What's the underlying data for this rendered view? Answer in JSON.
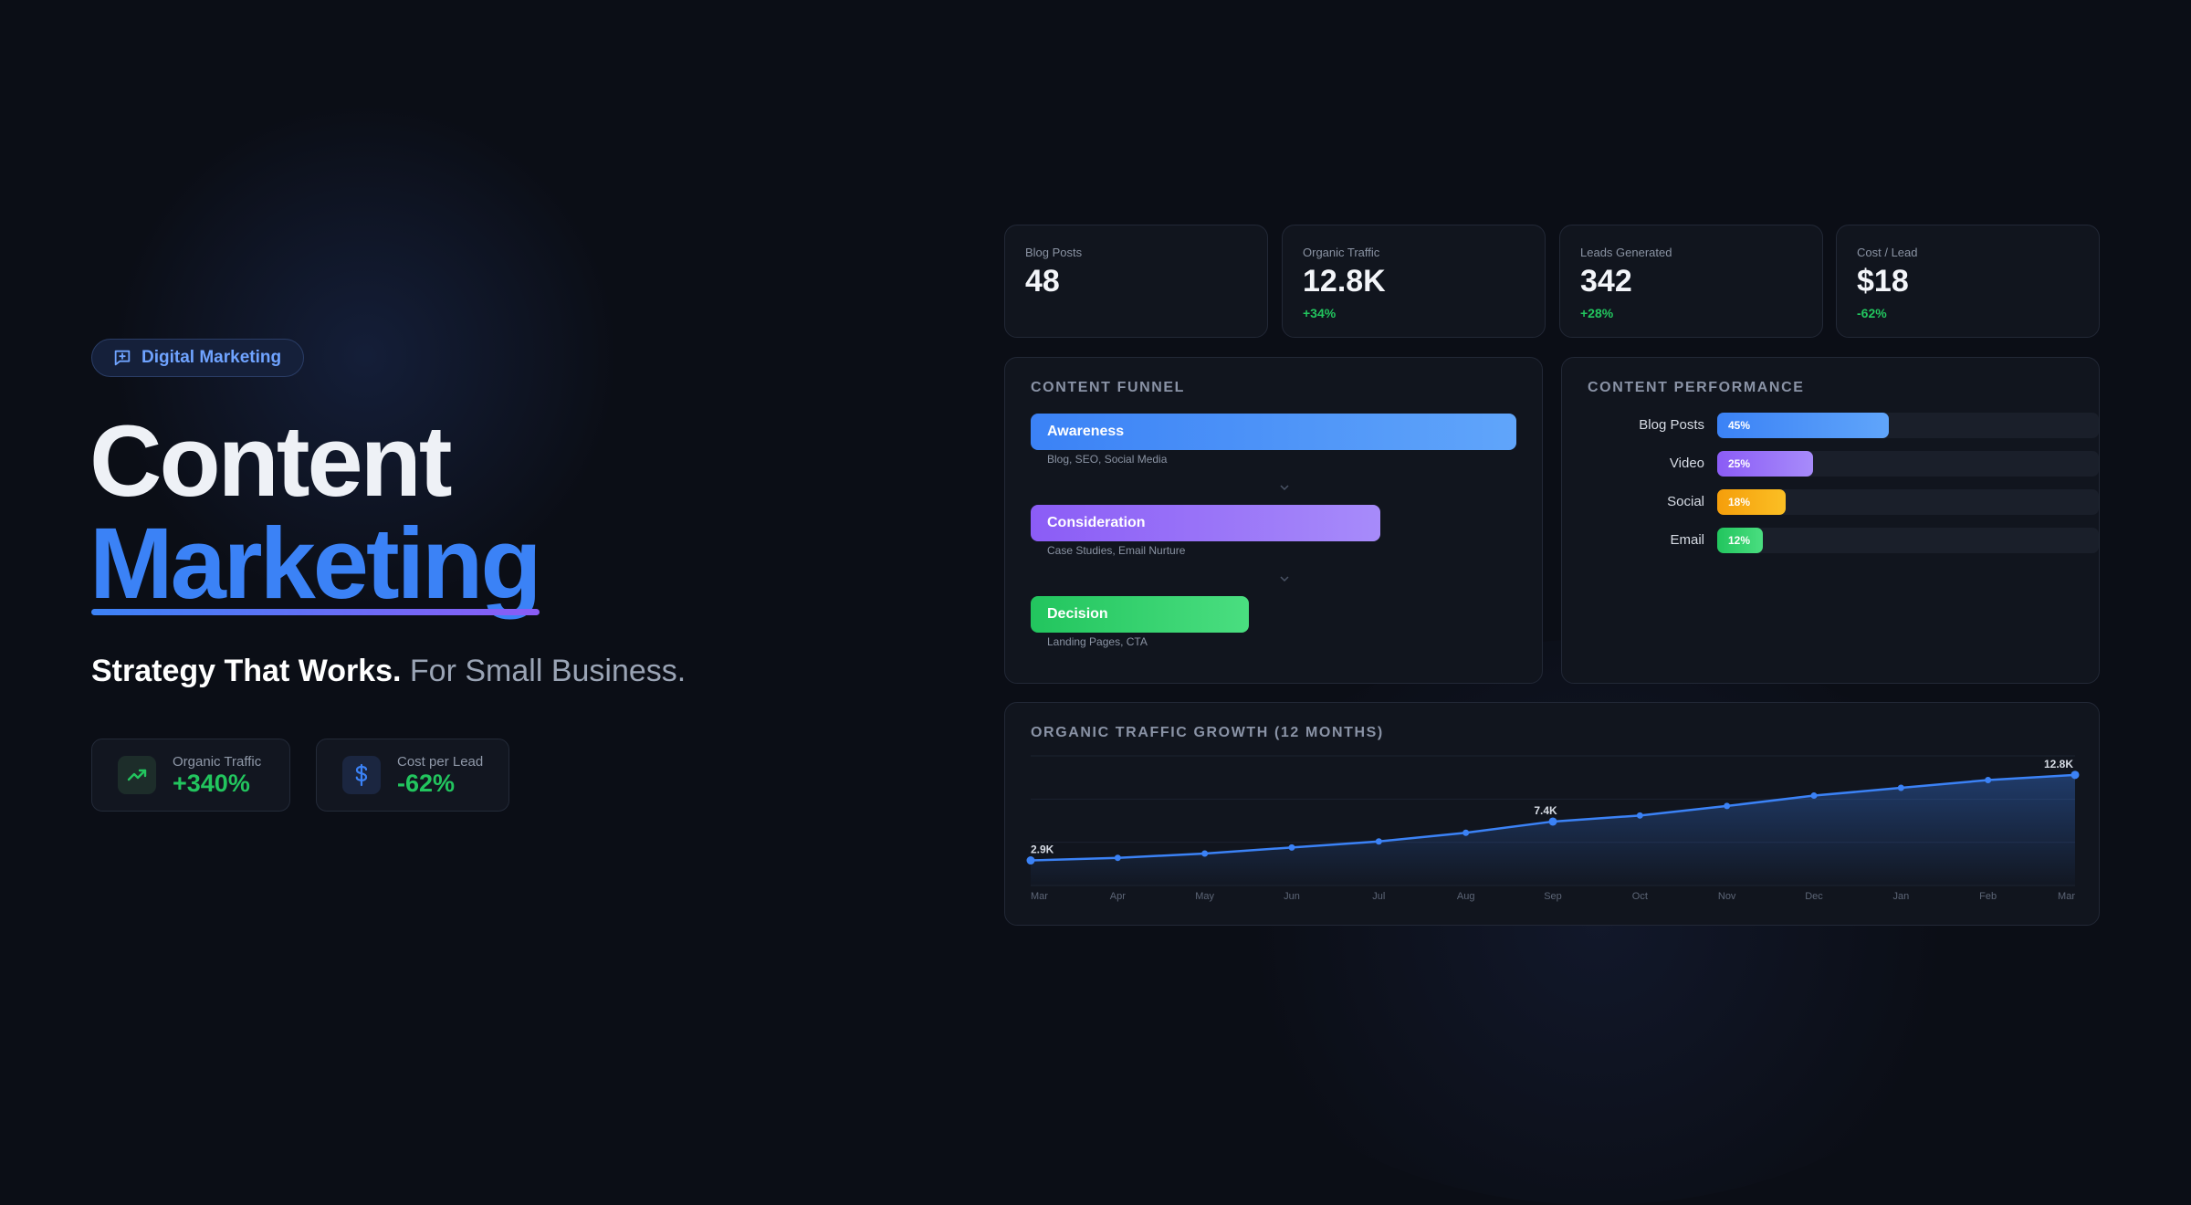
{
  "hero": {
    "badge": "Digital Marketing",
    "title_line1": "Content",
    "title_line2": "Marketing",
    "tagline_strong": "Strategy That Works.",
    "tagline_light": "For Small Business.",
    "stats": [
      {
        "label": "Organic Traffic",
        "value": "+340%",
        "icon": "trending-up-icon"
      },
      {
        "label": "Cost per Lead",
        "value": "-62%",
        "icon": "dollar-icon"
      }
    ]
  },
  "kpis": [
    {
      "label": "Blog Posts",
      "value": "48",
      "change": ""
    },
    {
      "label": "Organic Traffic",
      "value": "12.8K",
      "change": "+34%"
    },
    {
      "label": "Leads Generated",
      "value": "342",
      "change": "+28%"
    },
    {
      "label": "Cost / Lead",
      "value": "$18",
      "change": "-62%"
    }
  ],
  "funnel": {
    "title": "CONTENT FUNNEL",
    "stages": [
      {
        "label": "Awareness",
        "sub": "Blog, SEO, Social Media"
      },
      {
        "label": "Consideration",
        "sub": "Case Studies, Email Nurture"
      },
      {
        "label": "Decision",
        "sub": "Landing Pages, CTA"
      }
    ]
  },
  "performance": {
    "title": "CONTENT PERFORMANCE",
    "rows": [
      {
        "label": "Blog Posts",
        "pct": "45%",
        "value": 45
      },
      {
        "label": "Video",
        "pct": "25%",
        "value": 25
      },
      {
        "label": "Social",
        "pct": "18%",
        "value": 18
      },
      {
        "label": "Email",
        "pct": "12%",
        "value": 12
      }
    ]
  },
  "chart_data": {
    "type": "area",
    "title": "ORGANIC TRAFFIC GROWTH (12 MONTHS)",
    "categories": [
      "Mar",
      "Apr",
      "May",
      "Jun",
      "Jul",
      "Aug",
      "Sep",
      "Oct",
      "Nov",
      "Dec",
      "Jan",
      "Feb",
      "Mar"
    ],
    "values": [
      2.9,
      3.2,
      3.7,
      4.4,
      5.1,
      6.1,
      7.4,
      8.1,
      9.2,
      10.4,
      11.3,
      12.2,
      12.8
    ],
    "point_labels": {
      "0": "2.9K",
      "6": "7.4K",
      "12": "12.8K"
    },
    "ylim": [
      0,
      15
    ],
    "grid": true,
    "colors": {
      "line": "#3b82f6"
    }
  }
}
